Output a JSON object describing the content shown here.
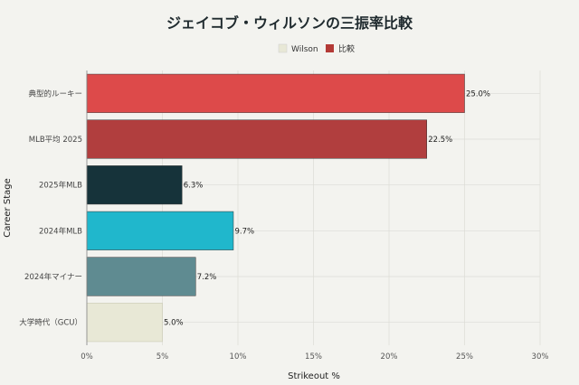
{
  "chart_data": {
    "type": "bar",
    "orientation": "horizontal",
    "title": "ジェイコブ・ウィルソンの三振率比較",
    "xlabel": "Strikeout %",
    "ylabel": "Career Stage",
    "xlim": [
      0,
      30
    ],
    "x_ticks": [
      "0%",
      "5%",
      "10%",
      "15%",
      "20%",
      "25%",
      "30%"
    ],
    "grid": true,
    "legend_position": "top-center",
    "legend": [
      {
        "name": "Wilson",
        "color": "#e8e8d6"
      },
      {
        "name": "比較",
        "color": "#b33a36"
      }
    ],
    "categories": [
      "典型的ルーキー",
      "MLB平均 2025",
      "2025年MLB",
      "2024年MLB",
      "2024年マイナー",
      "大学時代（GCU）"
    ],
    "values": [
      25.0,
      22.5,
      6.3,
      9.7,
      7.2,
      5.0
    ],
    "value_labels": [
      "25.0%",
      "22.5%",
      "6.3%",
      "9.7%",
      "7.2%",
      "5.0%"
    ],
    "colors": [
      "#dd4a4a",
      "#b13e3e",
      "#16333a",
      "#20b7cc",
      "#5f8b91",
      "#e8e8d6"
    ]
  }
}
